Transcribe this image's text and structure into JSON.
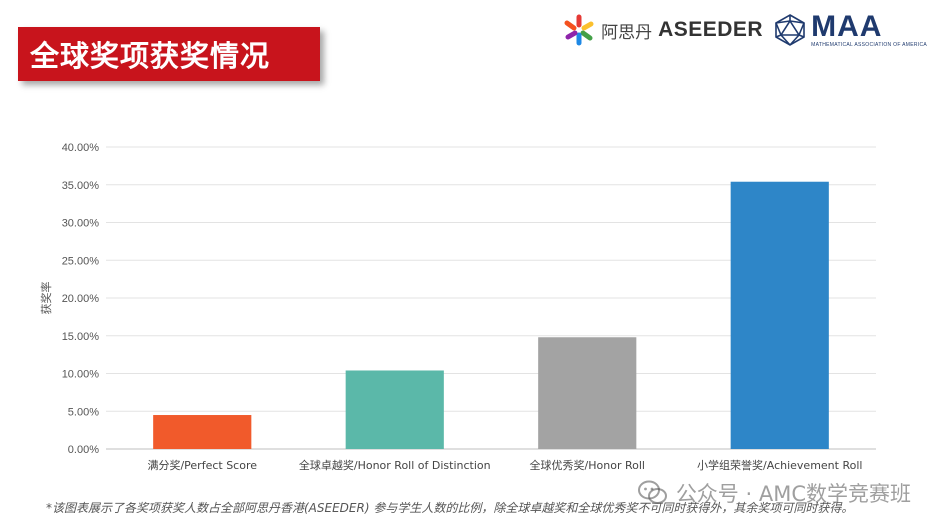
{
  "title": "全球奖项获奖情况",
  "logos": {
    "asi_name": "阿思丹",
    "aseeder": "ASEEDER",
    "maa": "MAA"
  },
  "chart_data": {
    "type": "bar",
    "categories": [
      "满分奖/Perfect Score",
      "全球卓越奖/Honor Roll of Distinction",
      "全球优秀奖/Honor Roll",
      "小学组荣誉奖/Achievement Roll"
    ],
    "values": [
      4.5,
      10.4,
      14.8,
      35.4
    ],
    "colors": [
      "#f15a2b",
      "#5bb8a9",
      "#a3a3a3",
      "#2e86c8"
    ],
    "ylabel": "获奖率",
    "ylim": [
      0,
      40
    ],
    "yticks": [
      "0.00%",
      "5.00%",
      "10.00%",
      "15.00%",
      "20.00%",
      "25.00%",
      "30.00%",
      "35.00%",
      "40.00%"
    ],
    "grid": true
  },
  "footnote": "*该图表展示了各奖项获奖人数占全部阿思丹香港(ASEEDER) 参与学生人数的比例，除全球卓越奖和全球优秀奖不可同时获得外，其余奖项可同时获得。",
  "watermark": "公众号 · AMC数学竞赛班"
}
